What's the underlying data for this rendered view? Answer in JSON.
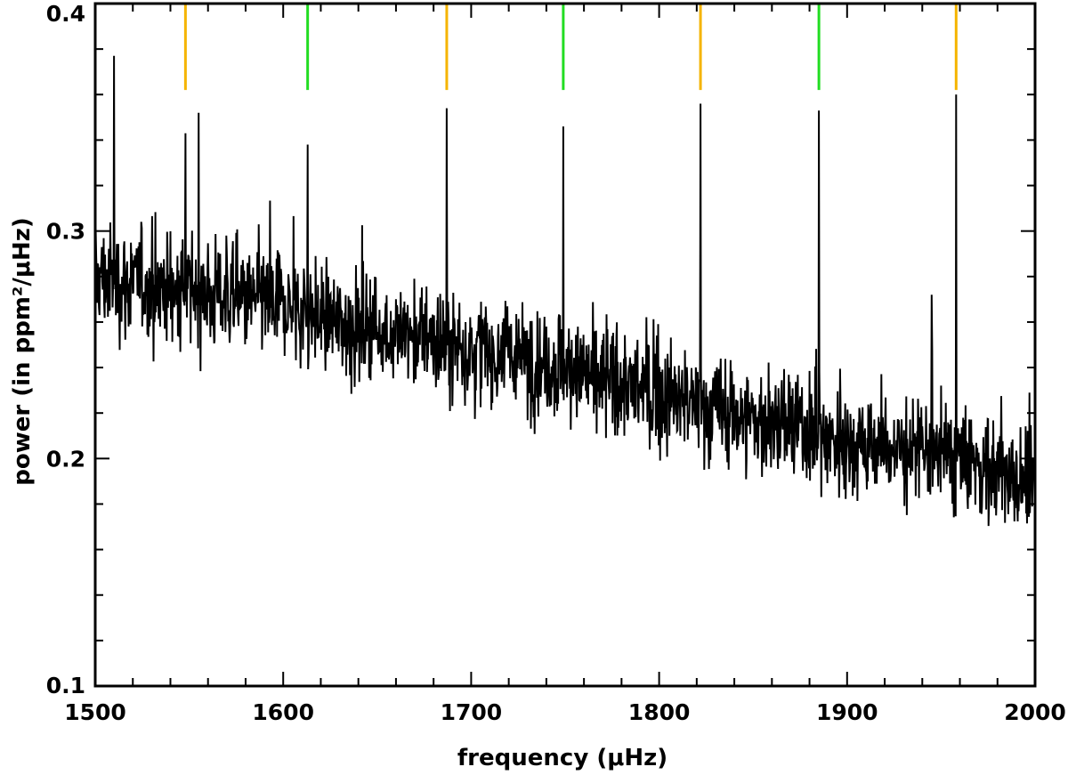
{
  "chart_data": {
    "type": "line",
    "title": "",
    "xlabel": "frequency (μHz)",
    "ylabel": "power (in ppm²/μHz)",
    "xlim": [
      1500,
      2000
    ],
    "ylim": [
      0.1,
      0.4
    ],
    "x_ticks": [
      1500,
      1600,
      1700,
      1800,
      1900,
      2000
    ],
    "x_tick_labels": [
      "1500",
      "1600",
      "1700",
      "1800",
      "1900",
      "2000"
    ],
    "y_ticks": [
      0.1,
      0.2,
      0.3,
      0.4
    ],
    "y_tick_labels": [
      "0.1",
      "0.2",
      "0.3",
      "0.4"
    ],
    "grid": false,
    "series": [
      {
        "color": "#000000",
        "x": [
          1500,
          1510,
          1520,
          1540,
          1550,
          1560,
          1580,
          1600,
          1613,
          1620,
          1640,
          1660,
          1680,
          1687,
          1700,
          1720,
          1740,
          1749,
          1760,
          1780,
          1800,
          1822,
          1840,
          1860,
          1880,
          1885,
          1900,
          1920,
          1940,
          1945,
          1958,
          1970,
          1985,
          2000
        ],
        "values": [
          0.28,
          0.278,
          0.277,
          0.275,
          0.274,
          0.272,
          0.27,
          0.267,
          0.265,
          0.262,
          0.258,
          0.255,
          0.252,
          0.25,
          0.248,
          0.245,
          0.242,
          0.24,
          0.237,
          0.233,
          0.228,
          0.223,
          0.219,
          0.215,
          0.212,
          0.21,
          0.207,
          0.205,
          0.203,
          0.202,
          0.2,
          0.197,
          0.193,
          0.185
        ],
        "peaks": [
          {
            "x": 1510,
            "y": 0.377
          },
          {
            "x": 1548,
            "y": 0.343
          },
          {
            "x": 1555,
            "y": 0.352
          },
          {
            "x": 1613,
            "y": 0.338
          },
          {
            "x": 1687,
            "y": 0.354
          },
          {
            "x": 1749,
            "y": 0.346
          },
          {
            "x": 1822,
            "y": 0.356
          },
          {
            "x": 1885,
            "y": 0.353
          },
          {
            "x": 1945,
            "y": 0.272
          },
          {
            "x": 1958,
            "y": 0.36
          }
        ]
      }
    ],
    "markers": [
      {
        "x": 1548,
        "color": "#f5b400"
      },
      {
        "x": 1613,
        "color": "#22dd22"
      },
      {
        "x": 1687,
        "color": "#f5b400"
      },
      {
        "x": 1749,
        "color": "#22dd22"
      },
      {
        "x": 1822,
        "color": "#f5b400"
      },
      {
        "x": 1885,
        "color": "#22dd22"
      },
      {
        "x": 1958,
        "color": "#f5b400"
      }
    ],
    "marker_range": [
      0.362,
      0.4
    ]
  }
}
